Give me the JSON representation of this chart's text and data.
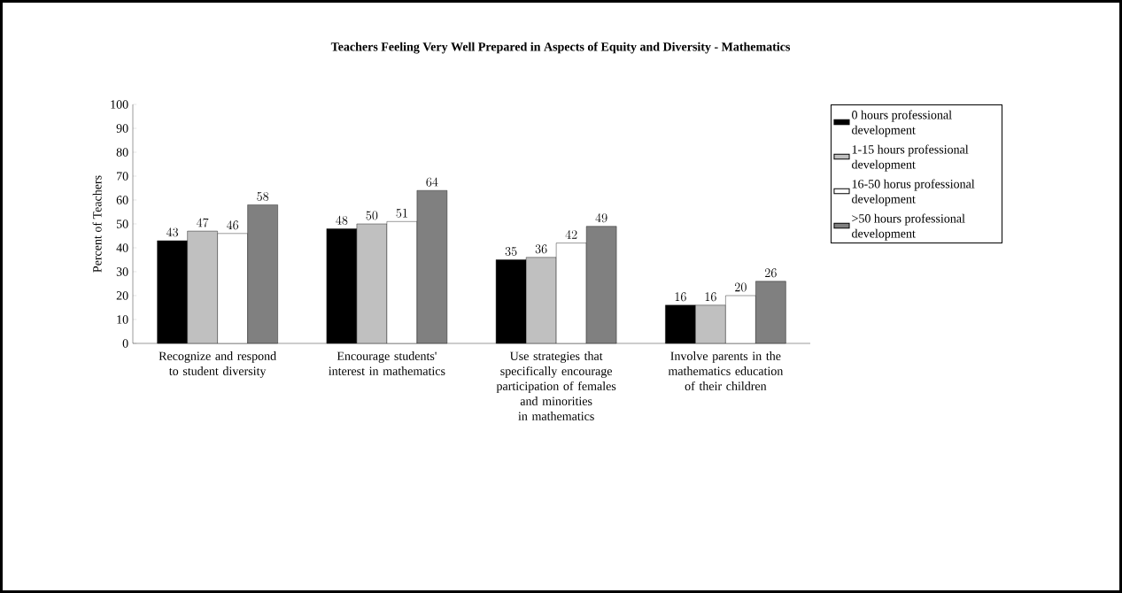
{
  "chart_data": {
    "type": "bar",
    "title": "Teachers Feeling Very Well Prepared in Aspects of Equity and Diversity - Mathematics",
    "ylabel": "Percent of Teachers",
    "categories": [
      "Recognize and respond to student diversity",
      "Encourage students' interest in mathematics",
      "Use strategies that specifically encourage participation of females and minorities in mathematics",
      "Involve parents in the mathematics education of their children"
    ],
    "series": [
      {
        "name": "0 hours professional development",
        "color": "#000000",
        "values": [
          43,
          48,
          35,
          16
        ]
      },
      {
        "name": "1-15 hours professional development",
        "color": "#c0c0c0",
        "values": [
          47,
          50,
          36,
          16
        ]
      },
      {
        "name": "16-50 horus professional development",
        "color": "#ffffff",
        "values": [
          46,
          51,
          42,
          20
        ]
      },
      {
        "name": ">50 hours professional development",
        "color": "#808080",
        "values": [
          58,
          64,
          49,
          26
        ]
      }
    ],
    "ylim": [
      0,
      100
    ],
    "yticks": [
      0,
      10,
      20,
      30,
      40,
      50,
      60,
      70,
      80,
      90,
      100
    ],
    "data_labels": true,
    "legend": "right",
    "grid": false
  }
}
